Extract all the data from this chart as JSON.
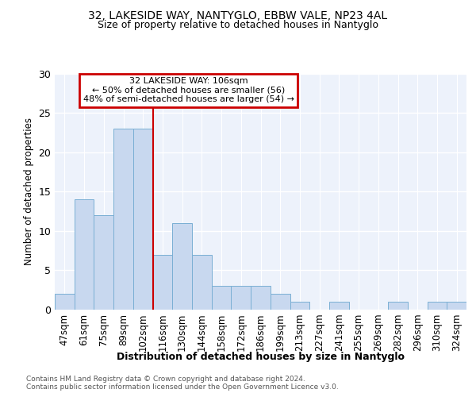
{
  "title1": "32, LAKESIDE WAY, NANTYGLO, EBBW VALE, NP23 4AL",
  "title2": "Size of property relative to detached houses in Nantyglo",
  "xlabel": "Distribution of detached houses by size in Nantyglo",
  "ylabel": "Number of detached properties",
  "categories": [
    "47sqm",
    "61sqm",
    "75sqm",
    "89sqm",
    "102sqm",
    "116sqm",
    "130sqm",
    "144sqm",
    "158sqm",
    "172sqm",
    "186sqm",
    "199sqm",
    "213sqm",
    "227sqm",
    "241sqm",
    "255sqm",
    "269sqm",
    "282sqm",
    "296sqm",
    "310sqm",
    "324sqm"
  ],
  "values": [
    2,
    14,
    12,
    23,
    23,
    7,
    11,
    7,
    3,
    3,
    3,
    2,
    1,
    0,
    1,
    0,
    0,
    1,
    0,
    1,
    1
  ],
  "bar_color": "#c8d8ef",
  "bar_edge_color": "#7aafd4",
  "background_color": "#edf2fb",
  "grid_color": "#ffffff",
  "annotation_line1": "32 LAKESIDE WAY: 106sqm",
  "annotation_line2": "← 50% of detached houses are smaller (56)",
  "annotation_line3": "48% of semi-detached houses are larger (54) →",
  "annotation_box_edge": "#cc0000",
  "red_line_x": 4.5,
  "red_line_color": "#cc0000",
  "ylim": [
    0,
    30
  ],
  "yticks": [
    0,
    5,
    10,
    15,
    20,
    25,
    30
  ],
  "footer1": "Contains HM Land Registry data © Crown copyright and database right 2024.",
  "footer2": "Contains public sector information licensed under the Open Government Licence v3.0."
}
